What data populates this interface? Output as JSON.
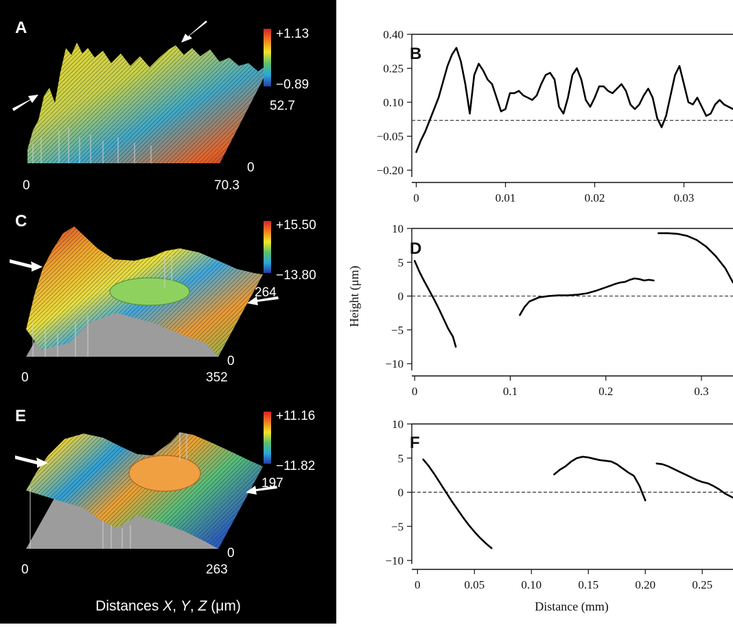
{
  "left_panels": [
    {
      "letter": "A",
      "zmax": "+1.13",
      "zmin": "−0.89",
      "ymax": "52.7",
      "yzero": "0",
      "xzero": "0",
      "xmax": "70.3"
    },
    {
      "letter": "C",
      "zmax": "+15.50",
      "zmin": "−13.80",
      "ymax": "264",
      "yzero": "0",
      "xzero": "0",
      "xmax": "352"
    },
    {
      "letter": "E",
      "zmax": "+11.16",
      "zmin": "−11.82",
      "ymax": "197",
      "yzero": "0",
      "xzero": "0",
      "xmax": "263"
    }
  ],
  "left_caption": {
    "prefix": "Distances ",
    "x": "X",
    "sep1": ", ",
    "y": "Y",
    "sep2": ", ",
    "z": "Z",
    "units": " (μm)"
  },
  "colors": {
    "left_bg": "#000000",
    "profile_line": "#000000",
    "zero_line": "#333333"
  },
  "chart_data": [
    {
      "panel": "B",
      "type": "line",
      "xlim": [
        -0.0005,
        0.0355
      ],
      "ylim": [
        -0.23,
        0.4
      ],
      "xticks": [
        0,
        0.01,
        0.02,
        0.03
      ],
      "xtick_labels": [
        "0",
        "0.01",
        "0.02",
        "0.03"
      ],
      "yticks": [
        0.4,
        0.25,
        0.1,
        -0.05,
        -0.2
      ],
      "ytick_labels": [
        "0.40",
        "0.25",
        "0.10",
        "−0.05",
        "−0.20"
      ],
      "reference_y": 0.02,
      "xlabel": "",
      "ylabel": "",
      "segments": [
        {
          "x": [
            0,
            0.0005,
            0.001,
            0.0015,
            0.002,
            0.0025,
            0.003,
            0.0035,
            0.004,
            0.0045,
            0.005,
            0.0055,
            0.006,
            0.0065,
            0.007,
            0.0075,
            0.008,
            0.0085,
            0.009,
            0.0095,
            0.01,
            0.0105,
            0.011,
            0.0115,
            0.012,
            0.0125,
            0.013,
            0.0135,
            0.014,
            0.0145,
            0.015,
            0.0155,
            0.016,
            0.0165,
            0.017,
            0.0175,
            0.018,
            0.0185,
            0.019,
            0.0195,
            0.02,
            0.0205,
            0.021,
            0.0215,
            0.022,
            0.0225,
            0.023,
            0.0235,
            0.024,
            0.0245,
            0.025,
            0.0255,
            0.026,
            0.0265,
            0.027,
            0.0275,
            0.028,
            0.0285,
            0.029,
            0.0295,
            0.03,
            0.0305,
            0.031,
            0.0315,
            0.032,
            0.0325,
            0.033,
            0.0335,
            0.034,
            0.0345,
            0.035,
            0.0355
          ],
          "y": [
            -0.12,
            -0.07,
            -0.03,
            0.02,
            0.07,
            0.12,
            0.19,
            0.26,
            0.31,
            0.34,
            0.28,
            0.18,
            0.05,
            0.22,
            0.27,
            0.24,
            0.2,
            0.18,
            0.12,
            0.06,
            0.07,
            0.14,
            0.14,
            0.15,
            0.13,
            0.12,
            0.11,
            0.13,
            0.18,
            0.22,
            0.23,
            0.2,
            0.08,
            0.05,
            0.12,
            0.22,
            0.25,
            0.2,
            0.11,
            0.08,
            0.12,
            0.17,
            0.17,
            0.15,
            0.14,
            0.16,
            0.18,
            0.15,
            0.09,
            0.07,
            0.09,
            0.13,
            0.16,
            0.12,
            0.03,
            -0.01,
            0.04,
            0.13,
            0.22,
            0.26,
            0.18,
            0.1,
            0.09,
            0.12,
            0.08,
            0.04,
            0.05,
            0.09,
            0.11,
            0.09,
            0.08,
            0.07
          ]
        }
      ]
    },
    {
      "panel": "D",
      "type": "line",
      "xlim": [
        -0.003,
        0.333
      ],
      "ylim": [
        -11,
        10
      ],
      "xticks": [
        0,
        0.1,
        0.2,
        0.3
      ],
      "xtick_labels": [
        "0",
        "0.1",
        "0.2",
        "0.3"
      ],
      "yticks": [
        10,
        5,
        0,
        -5,
        -10
      ],
      "ytick_labels": [
        "10",
        "5",
        "0",
        "−5",
        "−10"
      ],
      "reference_y": 0,
      "xlabel": "",
      "ylabel": "Height (μm)",
      "segments": [
        {
          "x": [
            0.0,
            0.005,
            0.01,
            0.015,
            0.02,
            0.025,
            0.03,
            0.035,
            0.04,
            0.043
          ],
          "y": [
            5.2,
            3.6,
            2.2,
            0.9,
            -0.4,
            -1.8,
            -3.3,
            -4.8,
            -6.0,
            -7.5
          ]
        },
        {
          "x": [
            0.11,
            0.115,
            0.12,
            0.13,
            0.14,
            0.15,
            0.16,
            0.17,
            0.18,
            0.19,
            0.2,
            0.21,
            0.215,
            0.22,
            0.225,
            0.23,
            0.235,
            0.24,
            0.245,
            0.25
          ],
          "y": [
            -2.8,
            -1.6,
            -0.8,
            -0.2,
            0.0,
            0.1,
            0.1,
            0.2,
            0.4,
            0.8,
            1.3,
            1.8,
            2.0,
            2.1,
            2.4,
            2.6,
            2.5,
            2.3,
            2.4,
            2.3
          ]
        },
        {
          "x": [
            0.255,
            0.265,
            0.275,
            0.285,
            0.295,
            0.305,
            0.315,
            0.325,
            0.333
          ],
          "y": [
            9.3,
            9.3,
            9.2,
            8.9,
            8.3,
            7.3,
            5.9,
            4.1,
            2.0
          ]
        }
      ]
    },
    {
      "panel": "F",
      "type": "line",
      "xlim": [
        -0.005,
        0.277
      ],
      "ylim": [
        -10.5,
        10
      ],
      "xticks": [
        0,
        0.05,
        0.1,
        0.15,
        0.2,
        0.25
      ],
      "xtick_labels": [
        "0",
        "0.05",
        "0.10",
        "0.15",
        "0.20",
        "0.25"
      ],
      "yticks": [
        10,
        5,
        0,
        -5,
        -10
      ],
      "ytick_labels": [
        "10",
        "5",
        "0",
        "−5",
        "−10"
      ],
      "reference_y": 0,
      "xlabel": "Distance (mm)",
      "ylabel": "",
      "segments": [
        {
          "x": [
            0.005,
            0.01,
            0.015,
            0.02,
            0.025,
            0.03,
            0.035,
            0.04,
            0.045,
            0.05,
            0.055,
            0.06,
            0.065
          ],
          "y": [
            4.8,
            3.8,
            2.6,
            1.3,
            0.0,
            -1.3,
            -2.5,
            -3.7,
            -4.8,
            -5.8,
            -6.7,
            -7.5,
            -8.2
          ]
        },
        {
          "x": [
            0.12,
            0.125,
            0.13,
            0.135,
            0.14,
            0.145,
            0.15,
            0.155,
            0.16,
            0.165,
            0.17,
            0.175,
            0.18,
            0.185,
            0.19,
            0.195,
            0.2
          ],
          "y": [
            2.6,
            3.3,
            3.8,
            4.5,
            5.0,
            5.2,
            5.1,
            4.9,
            4.7,
            4.6,
            4.5,
            4.1,
            3.5,
            2.9,
            2.4,
            0.9,
            -1.2
          ]
        },
        {
          "x": [
            0.21,
            0.215,
            0.22,
            0.225,
            0.23,
            0.235,
            0.24,
            0.245,
            0.25,
            0.255,
            0.26,
            0.265,
            0.27,
            0.277
          ],
          "y": [
            4.2,
            4.1,
            3.8,
            3.4,
            3.0,
            2.6,
            2.2,
            1.8,
            1.5,
            1.3,
            0.9,
            0.4,
            -0.2,
            -0.8
          ]
        }
      ]
    }
  ]
}
